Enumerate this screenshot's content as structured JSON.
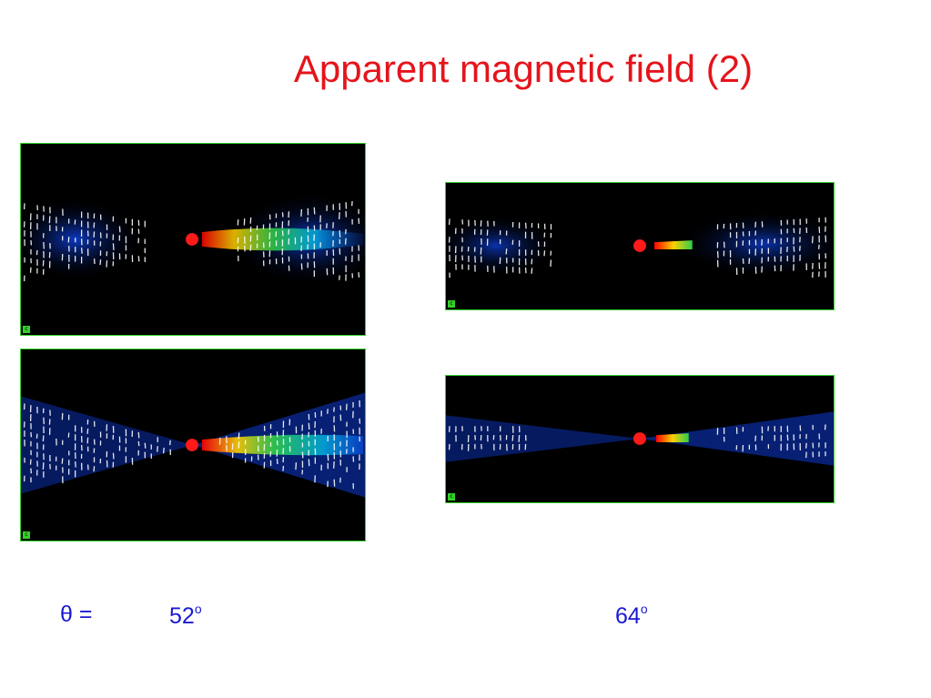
{
  "slide": {
    "title": "Apparent magnetic field (2)",
    "theta_label": "θ =",
    "angle_left": "52",
    "angle_right": "64",
    "degree_mark": "o",
    "panels": [
      {
        "id": "panel-52-top",
        "style": "wide-lobes"
      },
      {
        "id": "panel-52-bottom",
        "style": "cone"
      },
      {
        "id": "panel-64-top",
        "style": "wide-lobes"
      },
      {
        "id": "panel-64-bottom",
        "style": "cone"
      }
    ]
  },
  "colors": {
    "title": "#e5141b",
    "label": "#1a1ad2",
    "panel_border": "#34d12a",
    "core": "#ff1a1a"
  }
}
